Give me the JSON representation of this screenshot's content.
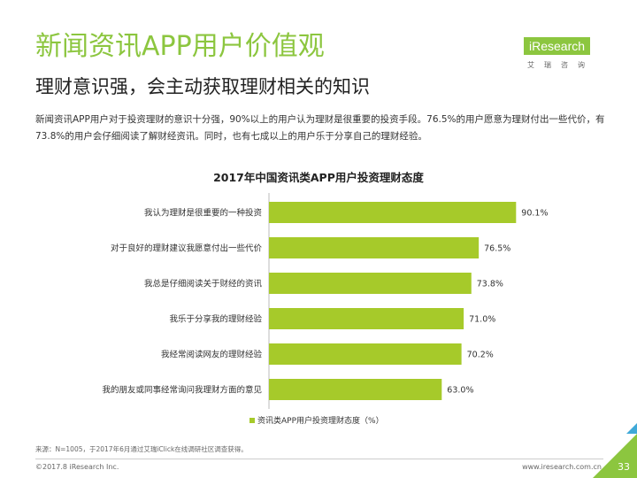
{
  "header": {
    "title": "新闻资讯APP用户价值观",
    "subtitle": "理财意识强，会主动获取理财相关的知识",
    "description": "新闻资讯APP用户对于投资理财的意识十分强，90%以上的用户认为理财是很重要的投资手段。76.5%的用户愿意为理财付出一些代价，有73.8%的用户会仔细阅读了解财经资讯。同时，也有七成以上的用户乐于分享自己的理财经验。"
  },
  "logo": {
    "text": "iResearch",
    "subtext": "艾瑞咨询"
  },
  "chart_data": {
    "type": "bar",
    "orientation": "horizontal",
    "title": "2017年中国资讯类APP用户投资理财态度",
    "categories": [
      "我认为理财是很重要的一种投资",
      "对于良好的理财建议我愿意付出一些代价",
      "我总是仔细阅读关于财经的资讯",
      "我乐于分享我的理财经验",
      "我经常阅读网友的理财经验",
      "我的朋友或同事经常询问我理财方面的意见"
    ],
    "values": [
      90.1,
      76.5,
      73.8,
      71.0,
      70.2,
      63.0
    ],
    "value_labels": [
      "90.1%",
      "76.5%",
      "73.8%",
      "71.0%",
      "70.2%",
      "63.0%"
    ],
    "legend": "资讯类APP用户投资理财态度（%）",
    "legend_position": "bottom",
    "xlim": [
      0,
      100
    ],
    "grid": false,
    "color": "#a6ca2a"
  },
  "footer": {
    "source": "来源：N=1005，于2017年6月通过艾瑞iClick在线调研社区调查获得。",
    "copyright": "©2017.8 iResearch Inc.",
    "website": "www.iresearch.com.cn",
    "page": "33"
  },
  "colors": {
    "accent": "#8cc63f",
    "bar": "#a6ca2a",
    "corner_stripe": "#3fa9d8"
  }
}
